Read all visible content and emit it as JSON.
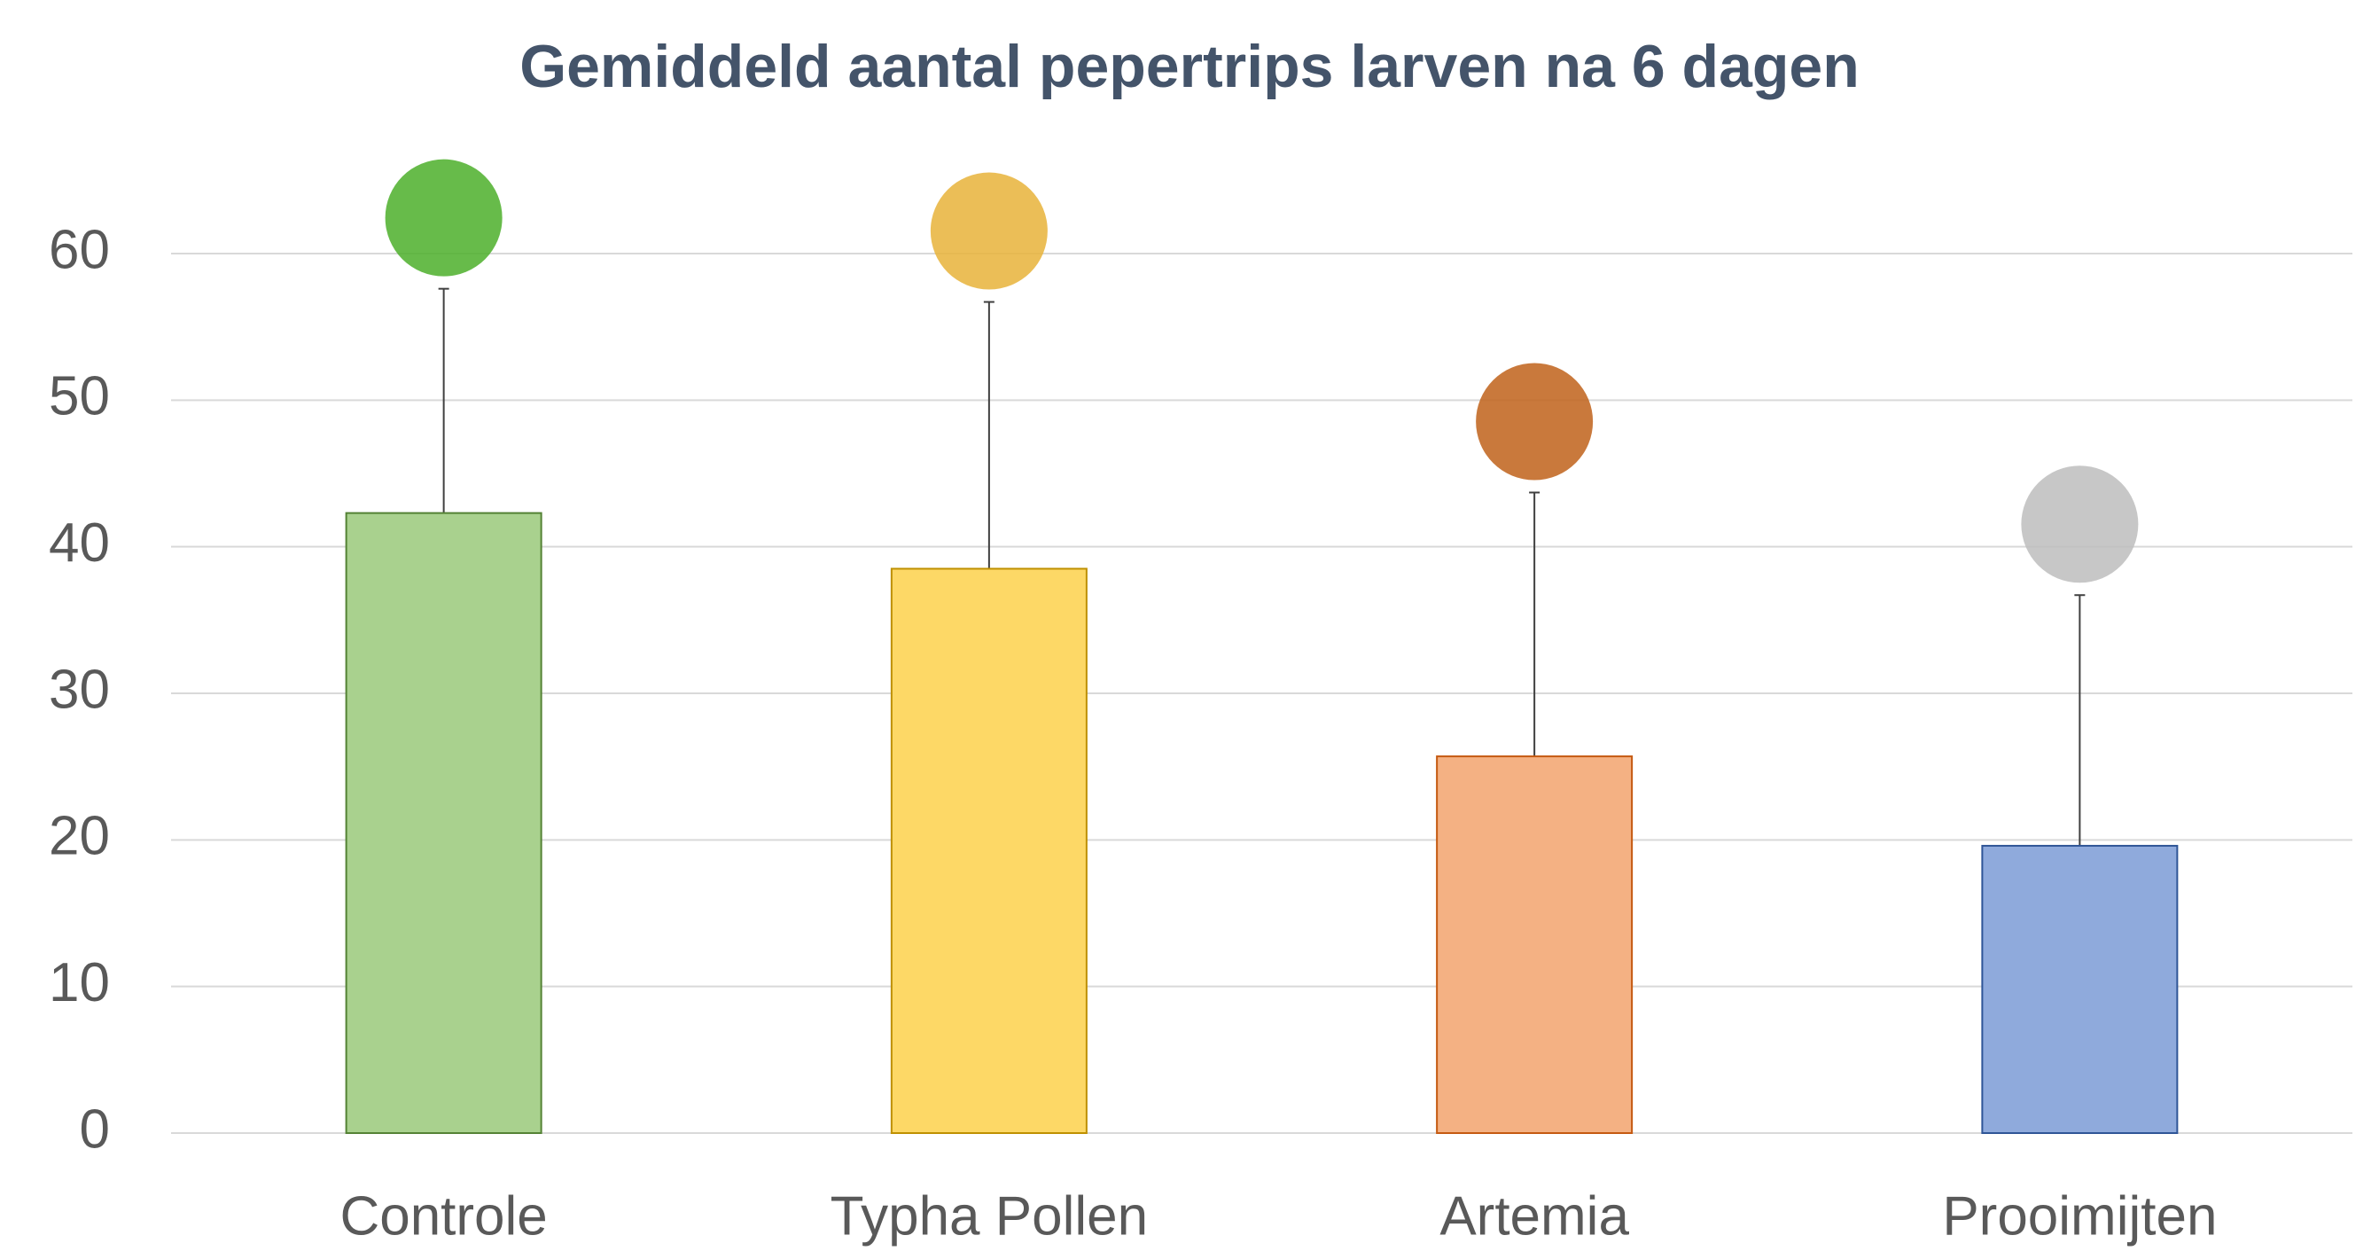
{
  "chart_data": {
    "type": "bar",
    "title": "Gemiddeld aantal pepertrips larven na 6 dagen",
    "categories": [
      "Controle",
      "Typha Pollen",
      "Artemia",
      "Prooimijten"
    ],
    "values": [
      42.3,
      38.5,
      25.7,
      19.6
    ],
    "errors": [
      15.3,
      18.2,
      18.0,
      17.1
    ],
    "colors": [
      "#a9d18e",
      "#fdd866",
      "#f4b183",
      "#8faadc"
    ],
    "edge_colors": [
      "#548235",
      "#bf9000",
      "#c55a11",
      "#2f5597"
    ],
    "ylim": [
      0,
      60
    ],
    "yticks": [
      0,
      10,
      20,
      30,
      40,
      50,
      60
    ],
    "grid": true
  }
}
